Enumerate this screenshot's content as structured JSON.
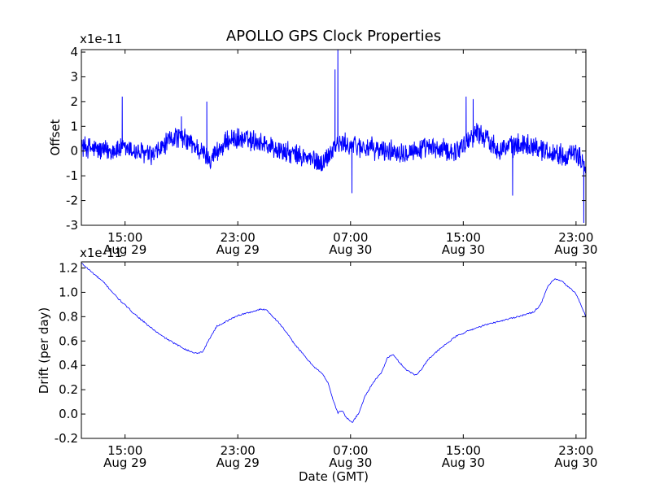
{
  "figure_title": "APOLLO GPS Clock Properties",
  "chart_data": [
    {
      "type": "line",
      "name": "offset",
      "title": "APOLLO GPS Clock Properties",
      "xlabel": "",
      "ylabel": "Offset",
      "multiplier_label": "x1e-11",
      "ylim": [
        -3,
        4.1
      ],
      "yticks": [
        -3,
        -2,
        -1,
        0,
        1,
        2,
        3,
        4
      ],
      "ytick_labels": [
        "-3",
        "-2",
        "-1",
        "0",
        "1",
        "2",
        "3",
        "4"
      ],
      "xlim_hours": [
        11.9,
        47.7
      ],
      "xticks": [
        {
          "hour": 15,
          "line1": "15:00",
          "line2": "Aug 29"
        },
        {
          "hour": 23,
          "line1": "23:00",
          "line2": "Aug 29"
        },
        {
          "hour": 31,
          "line1": "07:00",
          "line2": "Aug 30"
        },
        {
          "hour": 39,
          "line1": "15:00",
          "line2": "Aug 30"
        },
        {
          "hour": 47,
          "line1": "23:00",
          "line2": "Aug 30"
        }
      ],
      "series": [
        {
          "name": "Offset",
          "color": "#0000ff",
          "level_hours": [
            11.9,
            13.5,
            15.0,
            17.0,
            18.5,
            19.5,
            21.0,
            22.5,
            24.5,
            26.0,
            28.0,
            29.0,
            30.0,
            31.5,
            33.5,
            35.0,
            36.5,
            38.5,
            40.0,
            41.5,
            43.5,
            45.5,
            47.2,
            47.7
          ],
          "level_values": [
            0.2,
            0.0,
            0.1,
            -0.2,
            0.6,
            0.4,
            -0.3,
            0.5,
            0.4,
            0.0,
            -0.3,
            -0.5,
            0.3,
            0.2,
            0.0,
            0.0,
            0.1,
            0.0,
            0.8,
            0.1,
            0.3,
            -0.1,
            -0.2,
            -0.6
          ],
          "noise_amplitude": 0.5,
          "spikes": [
            {
              "hour": 14.8,
              "value": 2.2
            },
            {
              "hour": 19.0,
              "value": 1.4
            },
            {
              "hour": 20.8,
              "value": 2.0
            },
            {
              "hour": 29.9,
              "value": 3.3
            },
            {
              "hour": 30.1,
              "value": 4.1
            },
            {
              "hour": 31.1,
              "value": -1.7
            },
            {
              "hour": 39.2,
              "value": 2.2
            },
            {
              "hour": 39.7,
              "value": 2.1
            },
            {
              "hour": 42.5,
              "value": -1.8
            },
            {
              "hour": 47.55,
              "value": -2.9
            }
          ]
        }
      ]
    },
    {
      "type": "line",
      "name": "drift",
      "title": "",
      "xlabel": "Date (GMT)",
      "ylabel": "Drift (per day)",
      "multiplier_label": "x1e-11",
      "ylim": [
        -0.2,
        1.25
      ],
      "yticks": [
        -0.2,
        0.0,
        0.2,
        0.4,
        0.6,
        0.8,
        1.0,
        1.2
      ],
      "ytick_labels": [
        "-0.2",
        "0.0",
        "0.2",
        "0.4",
        "0.6",
        "0.8",
        "1.0",
        "1.2"
      ],
      "xlim_hours": [
        11.9,
        47.7
      ],
      "xticks": [
        {
          "hour": 15,
          "line1": "15:00",
          "line2": "Aug 29"
        },
        {
          "hour": 23,
          "line1": "23:00",
          "line2": "Aug 29"
        },
        {
          "hour": 31,
          "line1": "07:00",
          "line2": "Aug 30"
        },
        {
          "hour": 39,
          "line1": "15:00",
          "line2": "Aug 30"
        },
        {
          "hour": 47,
          "line1": "23:00",
          "line2": "Aug 30"
        }
      ],
      "series": [
        {
          "name": "Drift",
          "color": "#0000ff",
          "hours": [
            11.9,
            12.6,
            13.5,
            14.5,
            15.5,
            16.5,
            17.5,
            18.5,
            19.5,
            20.0,
            20.5,
            21.0,
            21.5,
            22.0,
            22.5,
            23.0,
            24.0,
            24.6,
            25.0,
            26.0,
            27.0,
            28.0,
            28.5,
            29.0,
            29.4,
            29.8,
            30.1,
            30.4,
            30.7,
            31.1,
            31.6,
            32.0,
            32.6,
            33.2,
            33.6,
            34.0,
            34.5,
            35.0,
            35.6,
            36.0,
            36.5,
            37.5,
            38.5,
            39.5,
            40.5,
            41.5,
            42.5,
            43.5,
            44.0,
            44.5,
            45.0,
            45.5,
            46.0,
            46.5,
            47.0,
            47.7
          ],
          "values": [
            1.24,
            1.17,
            1.08,
            0.95,
            0.84,
            0.74,
            0.65,
            0.58,
            0.52,
            0.5,
            0.51,
            0.62,
            0.72,
            0.75,
            0.78,
            0.81,
            0.84,
            0.86,
            0.86,
            0.74,
            0.58,
            0.44,
            0.38,
            0.33,
            0.26,
            0.1,
            0.01,
            0.03,
            -0.03,
            -0.07,
            0.01,
            0.14,
            0.26,
            0.34,
            0.46,
            0.49,
            0.42,
            0.36,
            0.32,
            0.36,
            0.45,
            0.55,
            0.64,
            0.69,
            0.73,
            0.76,
            0.79,
            0.82,
            0.84,
            0.9,
            1.05,
            1.11,
            1.09,
            1.04,
            0.99,
            0.8
          ]
        }
      ]
    }
  ]
}
